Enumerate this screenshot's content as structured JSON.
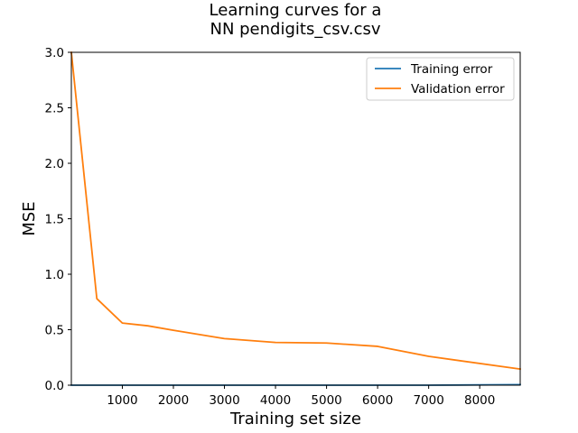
{
  "chart_data": {
    "type": "line",
    "title_lines": [
      "Learning curves for a",
      "NN pendigits_csv.csv"
    ],
    "xlabel": "Training set size",
    "ylabel": "MSE",
    "xlim": [
      1,
      8793
    ],
    "ylim": [
      0,
      3.0
    ],
    "xticks": [
      1000,
      2000,
      3000,
      4000,
      5000,
      6000,
      7000,
      8000
    ],
    "yticks": [
      0.0,
      0.5,
      1.0,
      1.5,
      2.0,
      2.5,
      3.0
    ],
    "x": [
      1,
      500,
      1000,
      1500,
      2000,
      3000,
      4000,
      5000,
      6000,
      7000,
      8793
    ],
    "series": [
      {
        "name": "Training error",
        "color": "#1f77b4",
        "values": [
          0.0,
          0.0,
          0.0,
          0.0,
          0.0,
          0.0,
          0.0,
          0.0,
          0.0,
          0.0,
          0.005
        ]
      },
      {
        "name": "Validation error",
        "color": "#ff7f0e",
        "values": [
          3.0,
          0.78,
          0.56,
          0.535,
          0.495,
          0.42,
          0.385,
          0.38,
          0.35,
          0.26,
          0.145
        ]
      }
    ],
    "legend_position": "top-right",
    "grid": false
  }
}
